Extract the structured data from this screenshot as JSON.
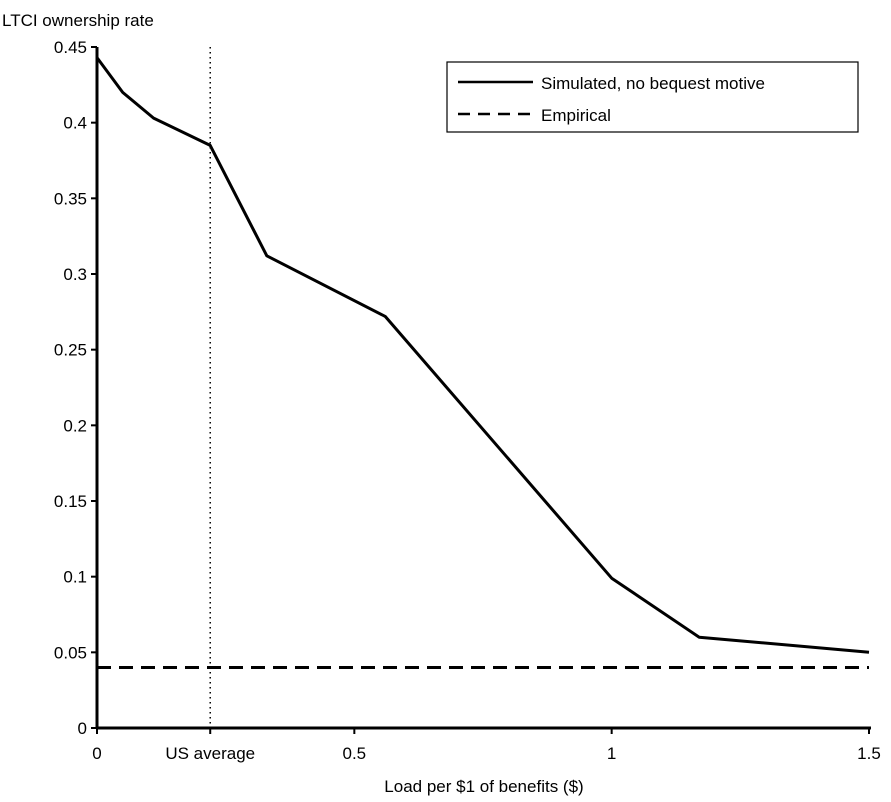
{
  "chart_data": {
    "type": "line",
    "ylabel": "LTCI ownership rate",
    "xlabel": "Load per $1 of benefits ($)",
    "xlim": [
      0,
      1.5
    ],
    "ylim": [
      0,
      0.45
    ],
    "x_ticks": [
      {
        "value": 0,
        "label": "0"
      },
      {
        "value": 0.22,
        "label": "US average"
      },
      {
        "value": 0.5,
        "label": "0.5"
      },
      {
        "value": 1,
        "label": "1"
      },
      {
        "value": 1.5,
        "label": "1.5"
      }
    ],
    "y_ticks": [
      {
        "value": 0,
        "label": "0"
      },
      {
        "value": 0.05,
        "label": "0.05"
      },
      {
        "value": 0.1,
        "label": "0.1"
      },
      {
        "value": 0.15,
        "label": "0.15"
      },
      {
        "value": 0.2,
        "label": "0.2"
      },
      {
        "value": 0.25,
        "label": "0.25"
      },
      {
        "value": 0.3,
        "label": "0.3"
      },
      {
        "value": 0.35,
        "label": "0.35"
      },
      {
        "value": 0.4,
        "label": "0.4"
      },
      {
        "value": 0.45,
        "label": "0.45"
      }
    ],
    "reference_line_x": 0.22,
    "legend_position": "top-right",
    "grid": false,
    "series": [
      {
        "name": "Simulated, no bequest motive",
        "style": "solid",
        "color": "#000000",
        "x": [
          0,
          0.05,
          0.11,
          0.22,
          0.33,
          0.56,
          1.0,
          1.17,
          1.5
        ],
        "y": [
          0.443,
          0.42,
          0.403,
          0.385,
          0.312,
          0.272,
          0.099,
          0.06,
          0.05
        ]
      },
      {
        "name": "Empirical",
        "style": "dashed",
        "color": "#000000",
        "x": [
          0,
          1.5
        ],
        "y": [
          0.04,
          0.04
        ]
      }
    ]
  }
}
